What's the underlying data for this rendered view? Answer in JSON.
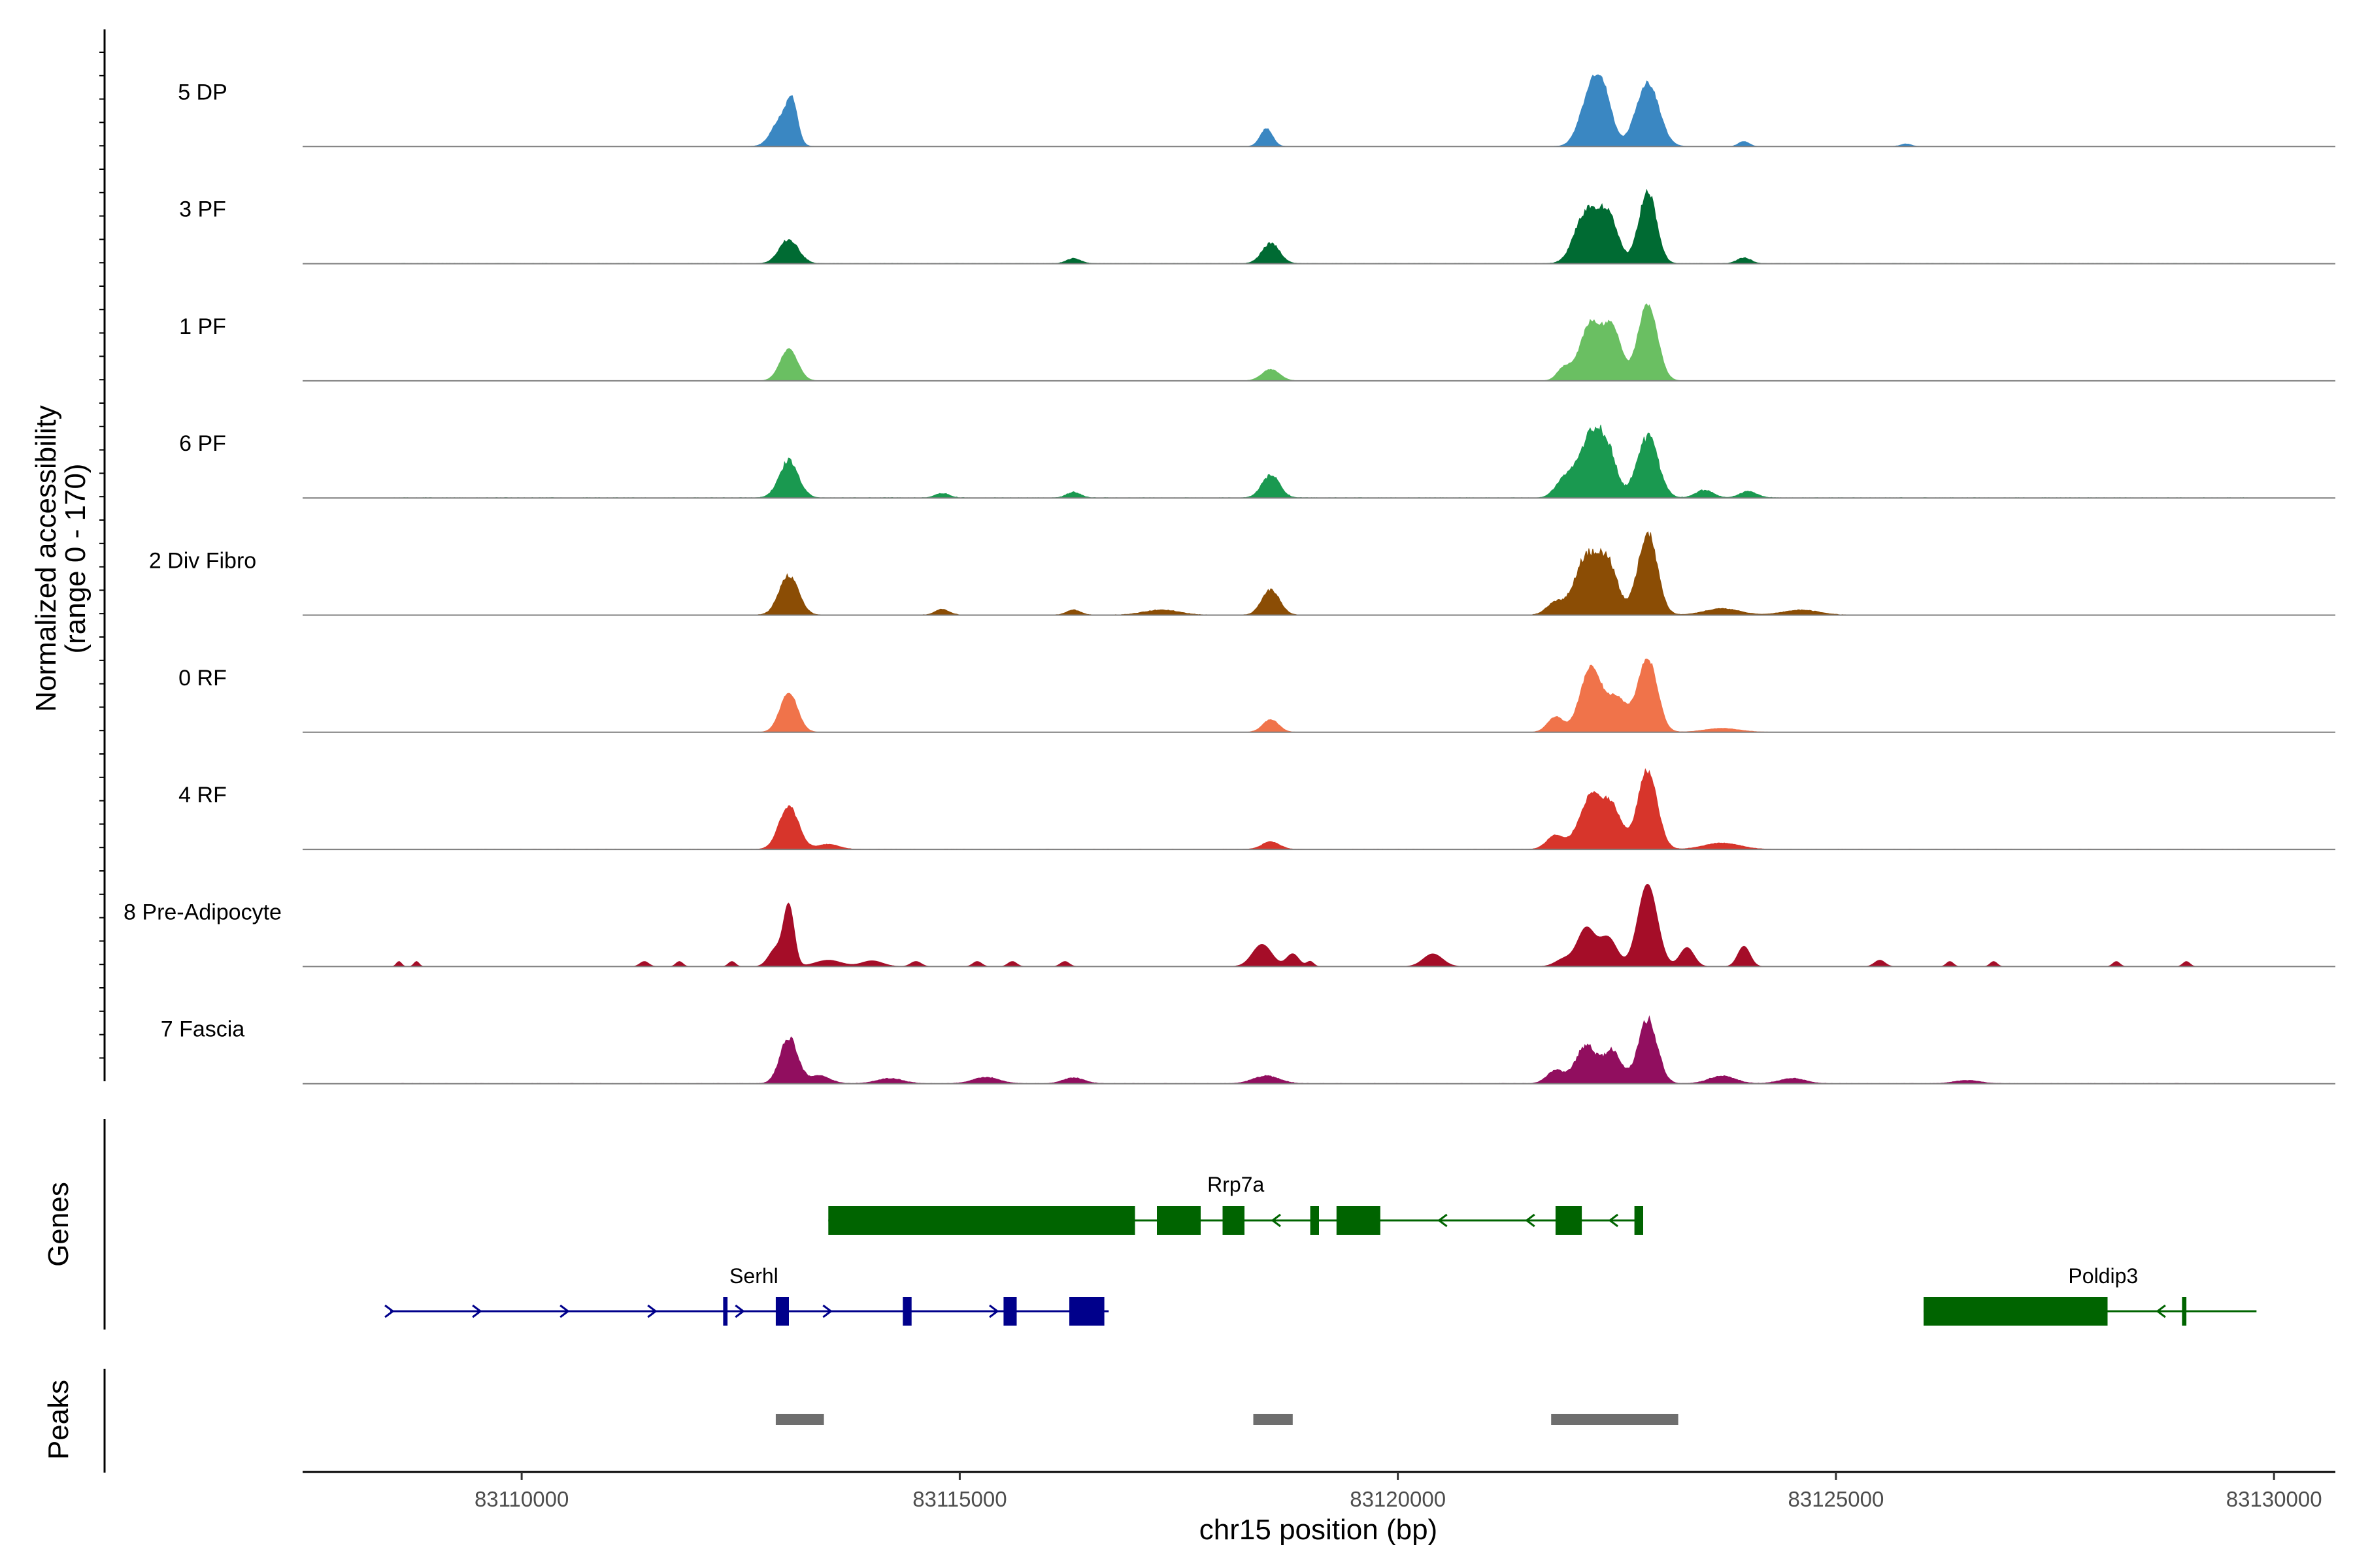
{
  "chart_data": {
    "type": "area",
    "title": "",
    "xlabel": "chr15 position (bp)",
    "ylabel_line1": "Normalized accessibility",
    "ylabel_line2": "(range 0 - 170)",
    "ylim": [
      0,
      170
    ],
    "xlim": [
      83107500,
      83130700
    ],
    "x_ticks": [
      83110000,
      83115000,
      83120000,
      83125000,
      83130000
    ],
    "x_tick_labels": [
      "83110000",
      "83115000",
      "83120000",
      "83125000",
      "83130000"
    ],
    "genes_label": "Genes",
    "peaks_label": "Peaks",
    "series": [
      {
        "name": "5 DP",
        "color": "#3a87c2",
        "range": [
          83108500,
          83129700
        ],
        "noise": 0.03,
        "peaks": [
          [
            83112970,
            45,
            110
          ],
          [
            83113090,
            55,
            60
          ],
          [
            83118500,
            28,
            70
          ],
          [
            83122200,
            80,
            120
          ],
          [
            83122350,
            68,
            100
          ],
          [
            83122850,
            100,
            130
          ],
          [
            83123950,
            8,
            60
          ],
          [
            83125800,
            4,
            60
          ]
        ]
      },
      {
        "name": "3 PF",
        "color": "#006b33",
        "range": [
          83108500,
          83129700
        ],
        "noise": 0.05,
        "peaks": [
          [
            83113050,
            38,
            110
          ],
          [
            83116300,
            8,
            80
          ],
          [
            83118550,
            32,
            100
          ],
          [
            83122150,
            80,
            130
          ],
          [
            83122400,
            75,
            110
          ],
          [
            83122850,
            112,
            100
          ],
          [
            83123950,
            9,
            80
          ]
        ]
      },
      {
        "name": "1 PF",
        "color": "#6abf62",
        "range": [
          83108500,
          83129700
        ],
        "noise": 0.025,
        "peaks": [
          [
            83113050,
            50,
            100
          ],
          [
            83118550,
            18,
            100
          ],
          [
            83121900,
            20,
            80
          ],
          [
            83122200,
            90,
            120
          ],
          [
            83122450,
            80,
            100
          ],
          [
            83122850,
            120,
            110
          ]
        ]
      },
      {
        "name": "6 PF",
        "color": "#1a9950",
        "range": [
          83108500,
          83129700
        ],
        "noise": 0.06,
        "peaks": [
          [
            83113050,
            58,
            110
          ],
          [
            83114800,
            7,
            80
          ],
          [
            83116300,
            9,
            80
          ],
          [
            83118550,
            36,
            100
          ],
          [
            83121900,
            30,
            100
          ],
          [
            83122200,
            100,
            130
          ],
          [
            83122400,
            60,
            100
          ],
          [
            83122850,
            96,
            120
          ],
          [
            83123500,
            12,
            100
          ],
          [
            83124000,
            10,
            100
          ]
        ]
      },
      {
        "name": "2 Div Fibro",
        "color": "#8b4d05",
        "range": [
          83108500,
          83129700
        ],
        "noise": 0.045,
        "peaks": [
          [
            83113050,
            62,
            110
          ],
          [
            83114800,
            9,
            80
          ],
          [
            83116300,
            8,
            80
          ],
          [
            83117300,
            8,
            200
          ],
          [
            83118550,
            40,
            100
          ],
          [
            83121800,
            20,
            100
          ],
          [
            83122150,
            90,
            130
          ],
          [
            83122400,
            78,
            110
          ],
          [
            83122850,
            130,
            110
          ],
          [
            83123700,
            10,
            200
          ],
          [
            83124600,
            8,
            200
          ]
        ]
      },
      {
        "name": "0 RF",
        "color": "#f0734a",
        "range": [
          83108500,
          83129700
        ],
        "noise": 0.025,
        "peaks": [
          [
            83113050,
            62,
            100
          ],
          [
            83118550,
            20,
            90
          ],
          [
            83121800,
            24,
            90
          ],
          [
            83122200,
            100,
            120
          ],
          [
            83122500,
            52,
            120
          ],
          [
            83122850,
            116,
            110
          ],
          [
            83123700,
            6,
            200
          ]
        ]
      },
      {
        "name": "4 RF",
        "color": "#d7352b",
        "range": [
          83108500,
          83129700
        ],
        "noise": 0.035,
        "peaks": [
          [
            83113050,
            68,
            110
          ],
          [
            83113500,
            8,
            120
          ],
          [
            83118550,
            12,
            100
          ],
          [
            83121800,
            22,
            100
          ],
          [
            83122200,
            82,
            130
          ],
          [
            83122450,
            60,
            110
          ],
          [
            83122850,
            125,
            110
          ],
          [
            83123700,
            10,
            200
          ]
        ]
      },
      {
        "name": "8 Pre-Adipocyte",
        "color": "#a50d28",
        "range": [
          83108500,
          83129500
        ],
        "noise": 0.0,
        "peaks": [
          [
            83108600,
            8,
            30
          ],
          [
            83108800,
            8,
            30
          ],
          [
            83111400,
            8,
            50
          ],
          [
            83111800,
            8,
            40
          ],
          [
            83112400,
            8,
            40
          ],
          [
            83112900,
            28,
            80
          ],
          [
            83113050,
            95,
            60
          ],
          [
            83113500,
            10,
            150
          ],
          [
            83114000,
            9,
            120
          ],
          [
            83114500,
            8,
            60
          ],
          [
            83115200,
            8,
            50
          ],
          [
            83115600,
            8,
            50
          ],
          [
            83116200,
            8,
            50
          ],
          [
            83118450,
            35,
            110
          ],
          [
            83118800,
            20,
            70
          ],
          [
            83119000,
            8,
            40
          ],
          [
            83120400,
            20,
            110
          ],
          [
            83121900,
            12,
            100
          ],
          [
            83122150,
            60,
            100
          ],
          [
            83122400,
            45,
            100
          ],
          [
            83122850,
            130,
            110
          ],
          [
            83123300,
            30,
            80
          ],
          [
            83123950,
            32,
            70
          ],
          [
            83125500,
            10,
            60
          ],
          [
            83126300,
            8,
            40
          ],
          [
            83126800,
            8,
            40
          ],
          [
            83128200,
            8,
            40
          ],
          [
            83129000,
            8,
            40
          ]
        ]
      },
      {
        "name": "7 Fascia",
        "color": "#910e5f",
        "range": [
          83108500,
          83129500
        ],
        "noise": 0.05,
        "peaks": [
          [
            83113050,
            72,
            100
          ],
          [
            83113400,
            12,
            120
          ],
          [
            83114200,
            8,
            150
          ],
          [
            83115300,
            10,
            150
          ],
          [
            83116300,
            9,
            120
          ],
          [
            83118500,
            12,
            150
          ],
          [
            83121800,
            20,
            100
          ],
          [
            83122150,
            60,
            120
          ],
          [
            83122450,
            50,
            100
          ],
          [
            83122850,
            100,
            110
          ],
          [
            83123700,
            12,
            150
          ],
          [
            83124500,
            8,
            150
          ],
          [
            83126500,
            5,
            150
          ]
        ]
      }
    ],
    "genes": [
      {
        "name": "Rrp7a",
        "strand": "-",
        "color": "#006400",
        "row": 0,
        "start": 83113500,
        "end": 83122800,
        "exons": [
          [
            83113500,
            83117000
          ],
          [
            83117250,
            83117750
          ],
          [
            83118000,
            83118250
          ],
          [
            83119000,
            83119100
          ],
          [
            83119300,
            83119800
          ],
          [
            83121800,
            83122100
          ],
          [
            83122700,
            83122800
          ]
        ],
        "arrows": [
          83118600,
          83120500,
          83121500,
          83122450
        ]
      },
      {
        "name": "Serhl",
        "strand": "+",
        "color": "#00008b",
        "row": 1,
        "start": 83108500,
        "end": 83116700,
        "exons": [
          [
            83112300,
            83112350
          ],
          [
            83112900,
            83113050
          ],
          [
            83114350,
            83114450
          ],
          [
            83115500,
            83115650
          ],
          [
            83116250,
            83116650
          ]
        ],
        "arrows": [
          83108500,
          83109500,
          83110500,
          83111500,
          83112500,
          83113500,
          83115400
        ]
      },
      {
        "name": "Poldip3",
        "strand": "-",
        "color": "#006400",
        "row": 1,
        "start": 83126000,
        "end": 83129800,
        "exons": [
          [
            83126000,
            83128100
          ],
          [
            83128950,
            83129000
          ]
        ],
        "arrows": [
          83128700
        ]
      }
    ],
    "peak_regions": [
      [
        83112900,
        83113450
      ],
      [
        83118350,
        83118800
      ],
      [
        83121750,
        83123200
      ]
    ]
  }
}
